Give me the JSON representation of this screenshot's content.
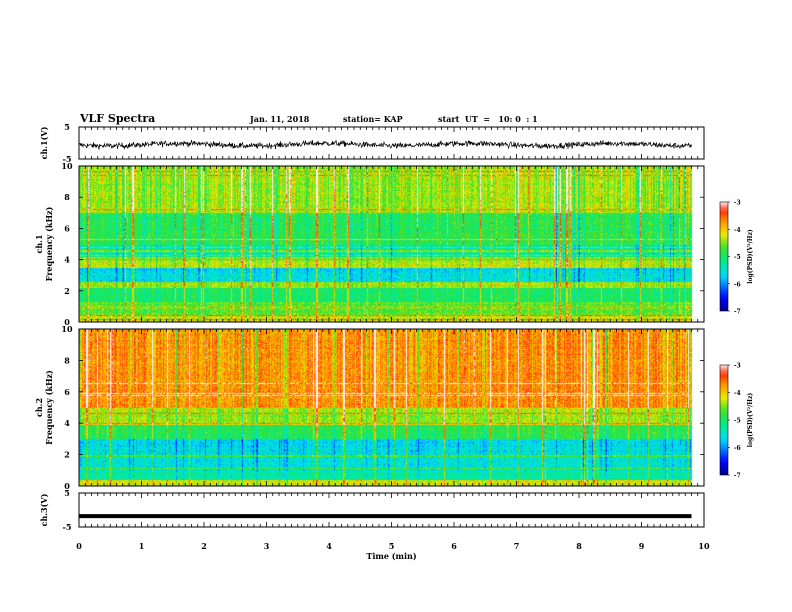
{
  "header": {
    "title": "VLF Spectra",
    "date": "Jan. 11, 2018",
    "station": "station= KAP",
    "start": "start  UT  =   10: 0  : 1"
  },
  "chart_data": [
    {
      "type": "line",
      "panel": "ch1-waveform",
      "ylabel": "ch.1(V)",
      "ylim": [
        -5,
        5
      ],
      "yticks": [
        "5",
        "-5"
      ],
      "xlim": [
        0,
        10
      ],
      "series": [
        {
          "values_summary": "noisy waveform around -0.5 V, amplitude ±2 V, ends at 9.8 min"
        }
      ],
      "color": "#000000"
    },
    {
      "type": "heatmap",
      "panel": "ch1-spectrogram",
      "ylabel": "ch.1\nFrequency (kHz)",
      "ylim": [
        0,
        10
      ],
      "yticks": [
        "0",
        "2",
        "4",
        "6",
        "8",
        "10"
      ],
      "xlim": [
        0,
        10
      ],
      "data_end_min": 9.8,
      "freq_band_levels": [
        {
          "f": [
            0,
            0.5
          ],
          "level": -4.3
        },
        {
          "f": [
            0.5,
            1.3
          ],
          "level": -4.6
        },
        {
          "f": [
            1.3,
            2.2
          ],
          "level": -5.0
        },
        {
          "f": [
            2.2,
            2.6
          ],
          "level": -4.4
        },
        {
          "f": [
            2.6,
            3.5
          ],
          "level": -5.6
        },
        {
          "f": [
            3.5,
            4.0
          ],
          "level": -4.3
        },
        {
          "f": [
            4.0,
            5.0
          ],
          "level": -5.3
        },
        {
          "f": [
            5.0,
            7.0
          ],
          "level": -4.9
        },
        {
          "f": [
            7.0,
            10.0
          ],
          "level": -4.4
        }
      ],
      "colorbar": {
        "label": "log(PSD)(V²/Hz)",
        "range": [
          -7,
          -3
        ],
        "ticks": [
          "-3",
          "-4",
          "-5",
          "-6",
          "-7"
        ]
      }
    },
    {
      "type": "heatmap",
      "panel": "ch2-spectrogram",
      "ylabel": "ch.2\nFrequency (kHz)",
      "ylim": [
        0,
        10
      ],
      "yticks": [
        "0",
        "2",
        "4",
        "6",
        "8",
        "10"
      ],
      "xlim": [
        0,
        10
      ],
      "data_end_min": 9.8,
      "freq_band_levels": [
        {
          "f": [
            0,
            0.4
          ],
          "level": -4.2
        },
        {
          "f": [
            0.4,
            1.0
          ],
          "level": -5.3
        },
        {
          "f": [
            1.0,
            2.0
          ],
          "level": -5.5
        },
        {
          "f": [
            2.0,
            3.0
          ],
          "level": -5.6
        },
        {
          "f": [
            3.0,
            4.0
          ],
          "level": -4.9
        },
        {
          "f": [
            4.0,
            5.0
          ],
          "level": -4.4
        },
        {
          "f": [
            5.0,
            10.0
          ],
          "level": -3.7
        }
      ],
      "colorbar": {
        "label": "log(PSD)(V²/Hz)",
        "range": [
          -7,
          -3
        ],
        "ticks": [
          "-3",
          "-4",
          "-5",
          "-6",
          "-7"
        ]
      }
    },
    {
      "type": "line",
      "panel": "ch3-waveform",
      "ylabel": "ch.3(V)",
      "ylim": [
        -5,
        5
      ],
      "yticks": [
        "5",
        "-5"
      ],
      "xlim": [
        0,
        10
      ],
      "series": [
        {
          "values_summary": "constant near -1.8 V, 0 to 9.8 min"
        }
      ],
      "color": "#000000"
    }
  ],
  "xaxis": {
    "label": "Time (min)",
    "ticks": [
      "0",
      "1",
      "2",
      "3",
      "4",
      "5",
      "6",
      "7",
      "8",
      "9",
      "10"
    ]
  }
}
